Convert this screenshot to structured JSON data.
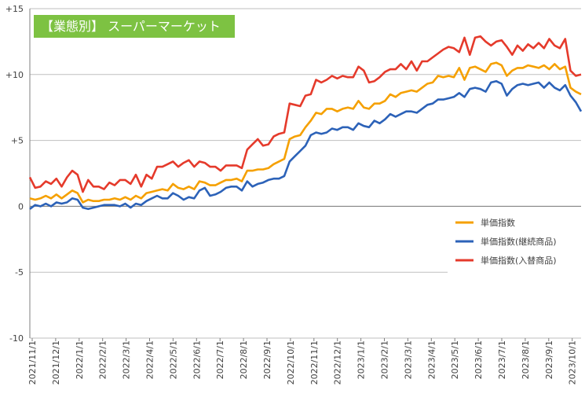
{
  "chart_data": {
    "type": "line",
    "title": "【業態別】 スーパーマーケット",
    "title_bg_color": "#7dc242",
    "ylim": [
      -10,
      15
    ],
    "y_ticks": [
      "+15",
      "+10",
      "+5",
      "0",
      "-5",
      "-10"
    ],
    "y_tick_values": [
      15,
      10,
      5,
      0,
      -5,
      -10
    ],
    "grid": "horizontal",
    "legend_position": "right-middle",
    "x_ticks": [
      "2021/11/1",
      "2021/12/1",
      "2022/1/1",
      "2022/2/1",
      "2022/3/1",
      "2022/4/1",
      "2022/5/1",
      "2022/6/1",
      "2022/7/1",
      "2022/8/1",
      "2022/9/1",
      "2022/10/1",
      "2022/11/1",
      "2022/12/1",
      "2023/1/1",
      "2023/2/1",
      "2023/3/1",
      "2023/4/1",
      "2023/5/1",
      "2023/6/1",
      "2023/7/1",
      "2023/8/1",
      "2023/9/1",
      "2023/10/1"
    ],
    "series": [
      {
        "name": "単価指数",
        "color": "#f5a000",
        "values": [
          0.6,
          0.5,
          0.6,
          0.8,
          0.6,
          0.9,
          0.6,
          0.9,
          1.2,
          1.0,
          0.3,
          0.5,
          0.4,
          0.4,
          0.5,
          0.5,
          0.6,
          0.5,
          0.7,
          0.5,
          0.8,
          0.6,
          1.0,
          1.1,
          1.2,
          1.3,
          1.2,
          1.7,
          1.4,
          1.3,
          1.5,
          1.3,
          1.9,
          1.8,
          1.6,
          1.6,
          1.8,
          2.0,
          2.0,
          2.1,
          1.9,
          2.7,
          2.7,
          2.8,
          2.8,
          2.9,
          3.2,
          3.4,
          3.6,
          5.1,
          5.3,
          5.4,
          6.0,
          6.5,
          7.1,
          7.0,
          7.4,
          7.4,
          7.2,
          7.4,
          7.5,
          7.4,
          8.0,
          7.5,
          7.4,
          7.8,
          7.8,
          8.0,
          8.5,
          8.3,
          8.6,
          8.7,
          8.8,
          8.7,
          9.0,
          9.3,
          9.4,
          9.9,
          9.8,
          9.9,
          9.8,
          10.5,
          9.6,
          10.5,
          10.6,
          10.4,
          10.2,
          10.8,
          10.9,
          10.7,
          9.9,
          10.3,
          10.5,
          10.5,
          10.7,
          10.6,
          10.5,
          10.7,
          10.4,
          10.8,
          10.4,
          10.6,
          9.0,
          8.7,
          8.5
        ]
      },
      {
        "name": "単価指数(継続商品)",
        "color": "#2c62b8",
        "values": [
          -0.2,
          0.1,
          0.0,
          0.2,
          0.0,
          0.3,
          0.2,
          0.3,
          0.6,
          0.5,
          -0.1,
          -0.2,
          -0.1,
          0.0,
          0.1,
          0.1,
          0.1,
          0.0,
          0.2,
          -0.1,
          0.2,
          0.1,
          0.4,
          0.6,
          0.8,
          0.6,
          0.6,
          1.0,
          0.8,
          0.5,
          0.7,
          0.6,
          1.2,
          1.4,
          0.8,
          0.9,
          1.1,
          1.4,
          1.5,
          1.5,
          1.2,
          1.9,
          1.5,
          1.7,
          1.8,
          2.0,
          2.1,
          2.1,
          2.3,
          3.4,
          3.8,
          4.2,
          4.6,
          5.4,
          5.6,
          5.5,
          5.6,
          5.9,
          5.8,
          6.0,
          6.0,
          5.8,
          6.3,
          6.1,
          6.0,
          6.5,
          6.3,
          6.6,
          7.0,
          6.8,
          7.0,
          7.2,
          7.2,
          7.1,
          7.4,
          7.7,
          7.8,
          8.1,
          8.1,
          8.2,
          8.3,
          8.6,
          8.3,
          8.9,
          9.0,
          8.9,
          8.7,
          9.4,
          9.5,
          9.3,
          8.4,
          8.9,
          9.2,
          9.3,
          9.2,
          9.3,
          9.4,
          9.0,
          9.4,
          9.0,
          8.8,
          9.2,
          8.4,
          7.9,
          7.2
        ]
      },
      {
        "name": "単価指数(入替商品)",
        "color": "#e53a2b",
        "values": [
          2.2,
          1.4,
          1.5,
          1.9,
          1.7,
          2.1,
          1.5,
          2.2,
          2.7,
          2.4,
          1.1,
          2.0,
          1.5,
          1.5,
          1.3,
          1.8,
          1.6,
          2.0,
          2.0,
          1.7,
          2.4,
          1.5,
          2.4,
          2.1,
          3.0,
          3.0,
          3.2,
          3.4,
          3.0,
          3.3,
          3.5,
          3.0,
          3.4,
          3.3,
          3.0,
          3.0,
          2.7,
          3.1,
          3.1,
          3.1,
          2.9,
          4.3,
          4.7,
          5.1,
          4.6,
          4.7,
          5.3,
          5.5,
          5.6,
          7.8,
          7.7,
          7.6,
          8.4,
          8.5,
          9.6,
          9.4,
          9.6,
          9.9,
          9.7,
          9.9,
          9.8,
          9.8,
          10.6,
          10.3,
          9.4,
          9.5,
          9.8,
          10.2,
          10.4,
          10.4,
          10.8,
          10.4,
          11.0,
          10.3,
          11.0,
          11.0,
          11.3,
          11.6,
          11.9,
          12.1,
          12.0,
          11.7,
          12.8,
          11.5,
          12.8,
          12.9,
          12.5,
          12.2,
          12.5,
          12.6,
          12.1,
          11.5,
          12.2,
          11.8,
          12.3,
          12.0,
          12.4,
          12.0,
          12.7,
          12.2,
          12.0,
          12.7,
          10.3,
          9.9,
          10.0
        ]
      }
    ]
  }
}
